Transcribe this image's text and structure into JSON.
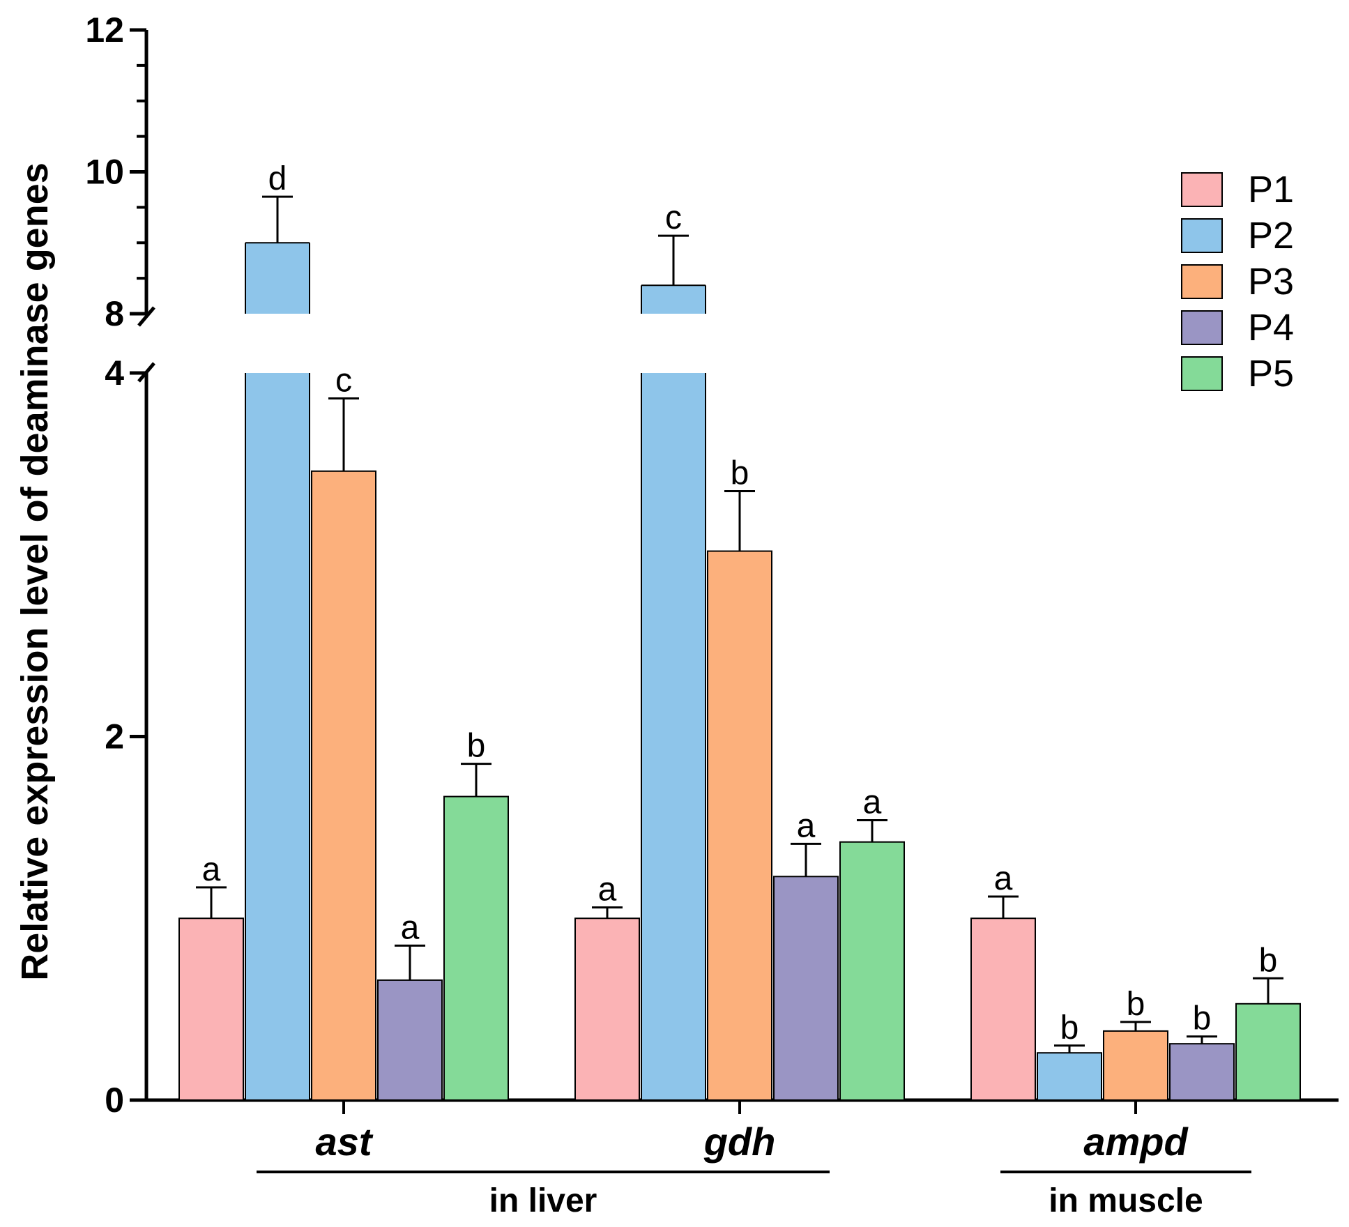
{
  "chart_data": {
    "type": "bar",
    "ylabel": "Relative expression level of deaminase genes",
    "y_axis_break": {
      "lower_range": [
        0,
        4
      ],
      "upper_range": [
        8,
        12
      ]
    },
    "y_ticks": [
      "0",
      "2",
      "4",
      "8",
      "10",
      "12"
    ],
    "categories": [
      "ast",
      "gdh",
      "ampd"
    ],
    "tissue_groups": [
      {
        "label": "in liver",
        "categories": [
          "ast",
          "gdh"
        ]
      },
      {
        "label": "in muscle",
        "categories": [
          "ampd"
        ]
      }
    ],
    "series": [
      {
        "name": "P1",
        "color": "#FBB3B5",
        "values": [
          1.0,
          1.0,
          1.0
        ],
        "errors": [
          0.17,
          0.06,
          0.12
        ],
        "letters": [
          "a",
          "a",
          "a"
        ]
      },
      {
        "name": "P2",
        "color": "#8EC5EA",
        "values": [
          9.0,
          8.4,
          0.26
        ],
        "errors": [
          0.65,
          0.7,
          0.04
        ],
        "letters": [
          "d",
          "c",
          "b"
        ]
      },
      {
        "name": "P3",
        "color": "#FCB07C",
        "values": [
          3.46,
          3.02,
          0.38
        ],
        "errors": [
          0.4,
          0.33,
          0.05
        ],
        "letters": [
          "c",
          "b",
          "b"
        ]
      },
      {
        "name": "P4",
        "color": "#9A95C4",
        "values": [
          0.66,
          1.23,
          0.31
        ],
        "errors": [
          0.19,
          0.18,
          0.04
        ],
        "letters": [
          "a",
          "a",
          "b"
        ]
      },
      {
        "name": "P5",
        "color": "#84DA98",
        "values": [
          1.67,
          1.42,
          0.53
        ],
        "errors": [
          0.18,
          0.12,
          0.14
        ],
        "letters": [
          "b",
          "a",
          "b"
        ]
      }
    ]
  }
}
